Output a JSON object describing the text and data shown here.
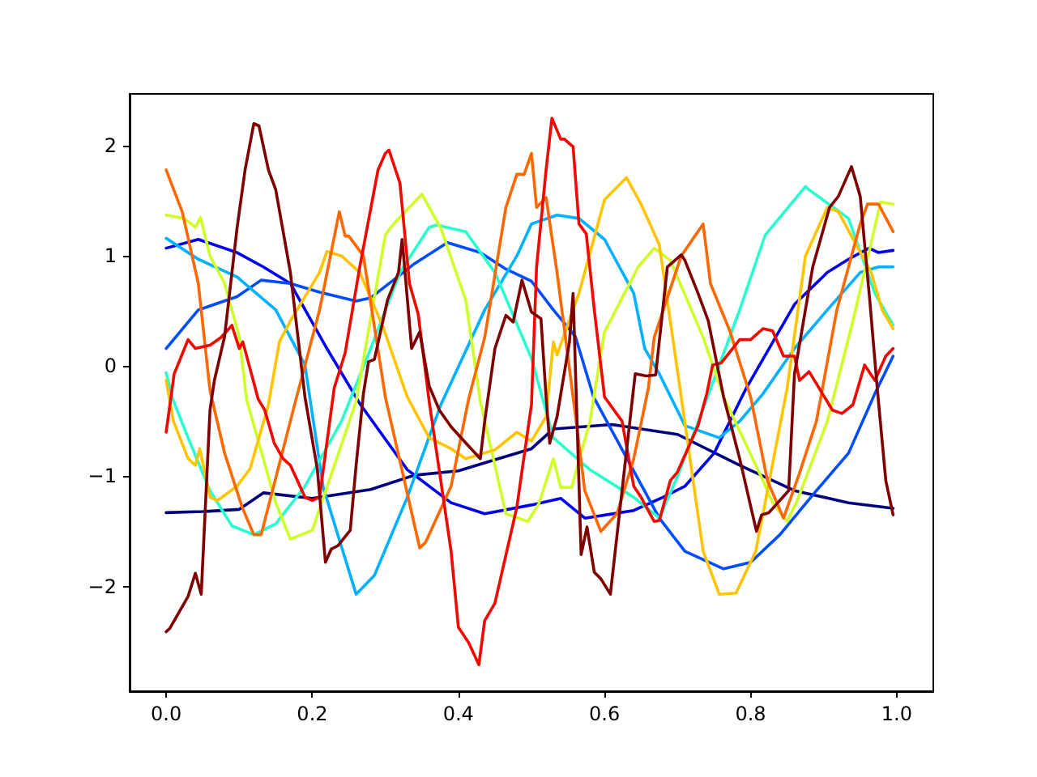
{
  "chart_data": {
    "type": "line",
    "xlim": [
      -0.05,
      1.05
    ],
    "ylim": [
      -2.95,
      2.47
    ],
    "xticks": [
      {
        "value": 0,
        "label": "0.0"
      },
      {
        "value": 0.2,
        "label": "0.2"
      },
      {
        "value": 0.4,
        "label": "0.4"
      },
      {
        "value": 0.6,
        "label": "0.6"
      },
      {
        "value": 0.8,
        "label": "0.8"
      },
      {
        "value": 1,
        "label": "1.0"
      }
    ],
    "yticks": [
      {
        "value": -2,
        "label": "−2"
      },
      {
        "value": -1,
        "label": "−1"
      },
      0,
      1,
      2
    ],
    "grid": false,
    "marker": "none",
    "series": [
      {
        "color": "#00007f",
        "x": [
          0,
          0.05,
          0.1,
          0.133,
          0.2,
          0.28,
          0.34,
          0.4,
          0.45,
          0.5,
          0.53,
          0.61,
          0.7,
          0.785,
          0.86,
          0.934,
          0.995
        ],
        "values": [
          -1.33,
          -1.32,
          -1.3,
          -1.15,
          -1.2,
          -1.12,
          -0.99,
          -0.95,
          -0.85,
          -0.75,
          -0.57,
          -0.53,
          -0.62,
          -0.9,
          -1.13,
          -1.24,
          -1.29
        ]
      },
      {
        "color": "#0000f1",
        "x": [
          0,
          0.044,
          0.097,
          0.133,
          0.17,
          0.22,
          0.265,
          0.33,
          0.39,
          0.436,
          0.5,
          0.54,
          0.573,
          0.64,
          0.68,
          0.71,
          0.75,
          0.794,
          0.86,
          0.905,
          0.934,
          0.962,
          0.975,
          0.995
        ],
        "values": [
          1.07,
          1.15,
          1.03,
          0.9,
          0.75,
          0.16,
          -0.34,
          -0.94,
          -1.24,
          -1.34,
          -1.26,
          -1.2,
          -1.38,
          -1.31,
          -1.19,
          -1.09,
          -0.79,
          -0.2,
          0.56,
          0.85,
          0.97,
          1.07,
          1.03,
          1.05
        ]
      },
      {
        "color": "#004dff",
        "x": [
          0,
          0.044,
          0.097,
          0.13,
          0.17,
          0.21,
          0.26,
          0.28,
          0.34,
          0.385,
          0.43,
          0.465,
          0.5,
          0.53,
          0.56,
          0.585,
          0.675,
          0.71,
          0.763,
          0.8,
          0.84,
          0.89,
          0.934,
          0.97,
          0.995
        ],
        "values": [
          0.16,
          0.51,
          0.63,
          0.78,
          0.75,
          0.67,
          0.59,
          0.62,
          0.93,
          1.12,
          1.03,
          0.88,
          0.77,
          0.51,
          0.27,
          -0.28,
          -1.38,
          -1.68,
          -1.84,
          -1.78,
          -1.53,
          -1.13,
          -0.79,
          -0.25,
          0.09
        ]
      },
      {
        "color": "#00b1ff",
        "x": [
          0,
          0.044,
          0.097,
          0.15,
          0.19,
          0.215,
          0.26,
          0.285,
          0.33,
          0.376,
          0.436,
          0.48,
          0.5,
          0.535,
          0.565,
          0.6,
          0.64,
          0.655,
          0.675,
          0.71,
          0.757,
          0.785,
          0.817,
          0.86,
          0.905,
          0.95,
          0.975,
          0.995
        ],
        "values": [
          1.16,
          0.97,
          0.81,
          0.51,
          0.01,
          -1.1,
          -2.07,
          -1.9,
          -1.19,
          -0.35,
          0.51,
          1.0,
          1.29,
          1.37,
          1.34,
          1.15,
          0.66,
          0.16,
          -0.07,
          -0.54,
          -0.65,
          -0.5,
          -0.25,
          0.16,
          0.51,
          0.85,
          0.9,
          0.9
        ]
      },
      {
        "color": "#29ffce",
        "x": [
          0,
          0.009,
          0.03,
          0.06,
          0.09,
          0.12,
          0.15,
          0.19,
          0.24,
          0.28,
          0.32,
          0.36,
          0.37,
          0.41,
          0.45,
          0.5,
          0.53,
          0.58,
          0.64,
          0.675,
          0.7,
          0.74,
          0.785,
          0.82,
          0.875,
          0.88,
          0.934,
          0.97,
          0.995
        ],
        "values": [
          -0.06,
          -0.3,
          -0.65,
          -1.13,
          -1.45,
          -1.53,
          -1.43,
          -1.09,
          -0.5,
          0.16,
          0.85,
          1.26,
          1.28,
          1.22,
          0.85,
          0.07,
          -0.65,
          -0.94,
          -1.19,
          -1.38,
          -1.0,
          -0.3,
          0.51,
          1.19,
          1.63,
          1.6,
          1.34,
          0.66,
          0.37
        ]
      },
      {
        "color": "#ceff29",
        "x": [
          0,
          0.025,
          0.04,
          0.047,
          0.06,
          0.08,
          0.1,
          0.11,
          0.15,
          0.17,
          0.2,
          0.26,
          0.3,
          0.31,
          0.35,
          0.376,
          0.41,
          0.43,
          0.465,
          0.495,
          0.51,
          0.53,
          0.54,
          0.555,
          0.58,
          0.6,
          0.646,
          0.668,
          0.69,
          0.735,
          0.763,
          0.817,
          0.83,
          0.85,
          0.865,
          0.905,
          0.94,
          0.978,
          0.995
        ],
        "values": [
          1.37,
          1.34,
          1.26,
          1.35,
          1.0,
          0.75,
          0.27,
          -0.3,
          -1.24,
          -1.57,
          -1.49,
          -0.32,
          1.19,
          1.28,
          1.56,
          1.25,
          0.6,
          -0.32,
          -1.34,
          -1.41,
          -1.25,
          -0.84,
          -1.1,
          -1.1,
          -0.5,
          0.31,
          0.9,
          1.07,
          0.96,
          0.26,
          -0.28,
          -1.04,
          -1.24,
          -1.41,
          -1.2,
          -0.5,
          0.41,
          1.49,
          1.47
        ]
      },
      {
        "color": "#ffc400",
        "x": [
          0,
          0.01,
          0.03,
          0.04,
          0.046,
          0.06,
          0.07,
          0.097,
          0.115,
          0.14,
          0.155,
          0.17,
          0.21,
          0.22,
          0.24,
          0.265,
          0.296,
          0.33,
          0.36,
          0.39,
          0.41,
          0.45,
          0.48,
          0.5,
          0.52,
          0.53,
          0.535,
          0.565,
          0.6,
          0.63,
          0.65,
          0.675,
          0.705,
          0.735,
          0.757,
          0.78,
          0.807,
          0.85,
          0.875,
          0.905,
          0.92,
          0.965,
          0.98,
          0.995
        ],
        "values": [
          -0.13,
          -0.5,
          -0.84,
          -0.9,
          -0.75,
          -1.19,
          -1.22,
          -1.09,
          -0.93,
          -0.35,
          0.22,
          0.41,
          0.85,
          1.04,
          1.0,
          0.85,
          0.37,
          -0.28,
          -0.65,
          -0.75,
          -0.84,
          -0.76,
          -0.6,
          -0.68,
          -0.46,
          0.22,
          0.1,
          0.66,
          1.51,
          1.71,
          1.47,
          1.1,
          -0.28,
          -1.68,
          -2.07,
          -2.06,
          -1.68,
          -0.2,
          1.0,
          1.44,
          1.4,
          0.85,
          0.51,
          0.34
        ]
      },
      {
        "color": "#ff6800",
        "x": [
          0,
          0.022,
          0.044,
          0.06,
          0.08,
          0.104,
          0.12,
          0.13,
          0.177,
          0.21,
          0.237,
          0.245,
          0.25,
          0.27,
          0.3,
          0.347,
          0.355,
          0.39,
          0.414,
          0.436,
          0.465,
          0.48,
          0.49,
          0.5,
          0.507,
          0.52,
          0.535,
          0.557,
          0.573,
          0.595,
          0.617,
          0.64,
          0.66,
          0.668,
          0.705,
          0.735,
          0.745,
          0.772,
          0.8,
          0.823,
          0.845,
          0.867,
          0.89,
          0.918,
          0.95,
          0.96,
          0.975,
          0.995
        ],
        "values": [
          1.78,
          1.4,
          0.75,
          -0.22,
          -0.79,
          -1.28,
          -1.53,
          -1.53,
          -0.32,
          0.51,
          1.4,
          1.18,
          1.18,
          1.0,
          -0.28,
          -1.65,
          -1.6,
          -1.09,
          -0.3,
          0.26,
          1.44,
          1.74,
          1.74,
          1.93,
          1.44,
          1.53,
          0.85,
          -0.28,
          -1.13,
          -1.5,
          -1.34,
          -0.84,
          -0.2,
          0.26,
          1.0,
          1.29,
          0.75,
          0.31,
          -0.28,
          -1.04,
          -1.38,
          -0.97,
          -0.5,
          0.51,
          1.29,
          1.47,
          1.47,
          1.22
        ]
      },
      {
        "color": "#f10800",
        "x": [
          0,
          0.011,
          0.03,
          0.04,
          0.06,
          0.075,
          0.09,
          0.1,
          0.105,
          0.126,
          0.135,
          0.148,
          0.16,
          0.17,
          0.19,
          0.2,
          0.21,
          0.23,
          0.245,
          0.265,
          0.29,
          0.3,
          0.305,
          0.32,
          0.333,
          0.345,
          0.36,
          0.39,
          0.4,
          0.414,
          0.428,
          0.436,
          0.45,
          0.48,
          0.5,
          0.507,
          0.52,
          0.528,
          0.54,
          0.545,
          0.557,
          0.565,
          0.575,
          0.586,
          0.6,
          0.624,
          0.64,
          0.65,
          0.668,
          0.675,
          0.69,
          0.7,
          0.728,
          0.74,
          0.748,
          0.76,
          0.785,
          0.8,
          0.817,
          0.83,
          0.845,
          0.86,
          0.867,
          0.88,
          0.912,
          0.925,
          0.94,
          0.956,
          0.97,
          0.985,
          0.995
        ],
        "values": [
          -0.6,
          -0.07,
          0.24,
          0.16,
          0.19,
          0.26,
          0.37,
          0.16,
          0.22,
          -0.3,
          -0.4,
          -0.7,
          -0.84,
          -0.9,
          -1.19,
          -1.22,
          -1.19,
          -0.2,
          0.12,
          0.9,
          1.78,
          1.93,
          1.96,
          1.66,
          0.75,
          0.47,
          -0.32,
          -1.68,
          -2.37,
          -2.51,
          -2.71,
          -2.31,
          -2.15,
          -1.28,
          -0.35,
          0.9,
          1.78,
          2.25,
          2.06,
          2.06,
          1.99,
          1.29,
          1.2,
          0.51,
          -0.28,
          -0.5,
          -1.09,
          -1.19,
          -1.41,
          -1.4,
          -1.04,
          -0.96,
          -0.54,
          -0.25,
          0.01,
          0.03,
          0.24,
          0.24,
          0.34,
          0.32,
          0.09,
          0.09,
          -0.13,
          -0.05,
          -0.4,
          -0.43,
          -0.35,
          0.01,
          -0.13,
          0.09,
          0.16
        ]
      },
      {
        "color": "#7f0000",
        "x": [
          0,
          0.005,
          0.03,
          0.04,
          0.048,
          0.06,
          0.066,
          0.08,
          0.097,
          0.108,
          0.12,
          0.127,
          0.14,
          0.15,
          0.17,
          0.19,
          0.207,
          0.218,
          0.226,
          0.235,
          0.252,
          0.26,
          0.27,
          0.277,
          0.285,
          0.303,
          0.318,
          0.323,
          0.336,
          0.347,
          0.36,
          0.374,
          0.39,
          0.405,
          0.43,
          0.436,
          0.45,
          0.465,
          0.475,
          0.487,
          0.5,
          0.513,
          0.52,
          0.525,
          0.535,
          0.552,
          0.557,
          0.568,
          0.576,
          0.586,
          0.595,
          0.608,
          0.642,
          0.657,
          0.67,
          0.686,
          0.705,
          0.71,
          0.728,
          0.742,
          0.763,
          0.785,
          0.808,
          0.815,
          0.825,
          0.852,
          0.86,
          0.885,
          0.908,
          0.92,
          0.938,
          0.95,
          0.963,
          0.973,
          0.985,
          0.995
        ],
        "values": [
          -2.41,
          -2.38,
          -2.09,
          -1.88,
          -2.07,
          -0.4,
          -0.13,
          0.27,
          1.25,
          1.78,
          2.2,
          2.18,
          1.78,
          1.6,
          0.85,
          -0.28,
          -0.94,
          -1.78,
          -1.66,
          -1.63,
          -1.49,
          -0.9,
          -0.25,
          0.04,
          0.06,
          0.6,
          0.85,
          1.15,
          0.16,
          0.31,
          -0.18,
          -0.4,
          -0.55,
          -0.66,
          -0.84,
          -0.5,
          0.16,
          0.46,
          0.4,
          0.78,
          0.49,
          0.43,
          -0.28,
          -0.7,
          -0.46,
          0.22,
          0.66,
          -1.71,
          -1.46,
          -1.87,
          -1.93,
          -2.07,
          -0.07,
          -0.09,
          -0.08,
          0.9,
          1.01,
          0.96,
          0.66,
          0.41,
          -0.28,
          -0.84,
          -1.5,
          -1.35,
          -1.33,
          -1.13,
          -0.07,
          0.9,
          1.44,
          1.54,
          1.81,
          1.54,
          0.6,
          -0.18,
          -1.04,
          -1.35
        ]
      }
    ]
  }
}
